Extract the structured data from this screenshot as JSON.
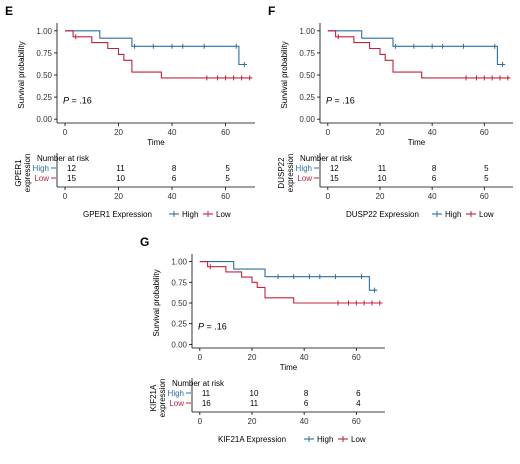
{
  "colors": {
    "high": "#2c6fa3",
    "low": "#c0243c",
    "axis": "#000000"
  },
  "chart_data": [
    {
      "type": "line",
      "panel_label": "E",
      "ylabel": "Survival probability",
      "xlabel": "Time",
      "xlim": [
        -3,
        71
      ],
      "ylim": [
        0,
        1.0
      ],
      "x_ticks": [
        "0",
        "20",
        "40",
        "60"
      ],
      "y_ticks": [
        "0.00",
        "0.25",
        "0.50",
        "0.75",
        "1.00"
      ],
      "p_label": "P",
      "p_value": "= .16",
      "risk_title": "Number at risk",
      "risk_ylabel": "GPER1\nexpression",
      "legend_title": "GPER1 Expression",
      "series": [
        {
          "name": "High",
          "key": "high",
          "steps": [
            [
              0,
              1.0
            ],
            [
              13,
              1.0
            ],
            [
              13,
              0.917
            ],
            [
              25,
              0.917
            ],
            [
              25,
              0.825
            ],
            [
              65,
              0.825
            ],
            [
              65,
              0.619
            ],
            [
              68,
              0.619
            ]
          ],
          "censor": [
            [
              26,
              0.825
            ],
            [
              33,
              0.825
            ],
            [
              40,
              0.825
            ],
            [
              44,
              0.825
            ],
            [
              52,
              0.825
            ],
            [
              64,
              0.825
            ],
            [
              67,
              0.619
            ]
          ],
          "risk": [
            "12",
            "11",
            "8",
            "5"
          ]
        },
        {
          "name": "Low",
          "key": "low",
          "steps": [
            [
              0,
              1.0
            ],
            [
              3,
              1.0
            ],
            [
              3,
              0.933
            ],
            [
              10,
              0.933
            ],
            [
              10,
              0.867
            ],
            [
              16,
              0.867
            ],
            [
              16,
              0.8
            ],
            [
              20,
              0.8
            ],
            [
              20,
              0.733
            ],
            [
              22,
              0.733
            ],
            [
              22,
              0.667
            ],
            [
              25,
              0.667
            ],
            [
              25,
              0.6
            ],
            [
              25,
              0.6
            ],
            [
              25,
              0.533
            ],
            [
              36,
              0.533
            ],
            [
              36,
              0.467
            ],
            [
              70,
              0.467
            ]
          ],
          "censor": [
            [
              4,
              0.933
            ],
            [
              53,
              0.467
            ],
            [
              57,
              0.467
            ],
            [
              60,
              0.467
            ],
            [
              63,
              0.467
            ],
            [
              66,
              0.467
            ],
            [
              69,
              0.467
            ]
          ],
          "risk": [
            "15",
            "10",
            "6",
            "5"
          ]
        }
      ]
    },
    {
      "type": "line",
      "panel_label": "F",
      "ylabel": "Survival probability",
      "xlabel": "Time",
      "xlim": [
        -3,
        71
      ],
      "ylim": [
        0,
        1.0
      ],
      "x_ticks": [
        "0",
        "20",
        "40",
        "60"
      ],
      "y_ticks": [
        "0.00",
        "0.25",
        "0.50",
        "0.75",
        "1.00"
      ],
      "p_label": "P",
      "p_value": "= .16",
      "risk_title": "Number at risk",
      "risk_ylabel": "DUSP22\nexpression",
      "legend_title": "DUSP22 Expression",
      "series": [
        {
          "name": "High",
          "key": "high",
          "steps": [
            [
              0,
              1.0
            ],
            [
              13,
              1.0
            ],
            [
              13,
              0.917
            ],
            [
              25,
              0.917
            ],
            [
              25,
              0.825
            ],
            [
              65,
              0.825
            ],
            [
              65,
              0.619
            ],
            [
              68,
              0.619
            ]
          ],
          "censor": [
            [
              26,
              0.825
            ],
            [
              33,
              0.825
            ],
            [
              40,
              0.825
            ],
            [
              44,
              0.825
            ],
            [
              52,
              0.825
            ],
            [
              64,
              0.825
            ],
            [
              67,
              0.619
            ]
          ],
          "risk": [
            "12",
            "11",
            "8",
            "5"
          ]
        },
        {
          "name": "Low",
          "key": "low",
          "steps": [
            [
              0,
              1.0
            ],
            [
              3,
              1.0
            ],
            [
              3,
              0.933
            ],
            [
              10,
              0.933
            ],
            [
              10,
              0.867
            ],
            [
              16,
              0.867
            ],
            [
              16,
              0.8
            ],
            [
              20,
              0.8
            ],
            [
              20,
              0.733
            ],
            [
              22,
              0.733
            ],
            [
              22,
              0.667
            ],
            [
              25,
              0.667
            ],
            [
              25,
              0.6
            ],
            [
              25,
              0.6
            ],
            [
              25,
              0.533
            ],
            [
              36,
              0.533
            ],
            [
              36,
              0.467
            ],
            [
              70,
              0.467
            ]
          ],
          "censor": [
            [
              4,
              0.933
            ],
            [
              53,
              0.467
            ],
            [
              57,
              0.467
            ],
            [
              60,
              0.467
            ],
            [
              63,
              0.467
            ],
            [
              66,
              0.467
            ],
            [
              69,
              0.467
            ]
          ],
          "risk": [
            "15",
            "10",
            "6",
            "5"
          ]
        }
      ]
    },
    {
      "type": "line",
      "panel_label": "G",
      "ylabel": "Survival probability",
      "xlabel": "Time",
      "xlim": [
        -3,
        71
      ],
      "ylim": [
        0,
        1.0
      ],
      "x_ticks": [
        "0",
        "20",
        "40",
        "60"
      ],
      "y_ticks": [
        "0.00",
        "0.25",
        "0.50",
        "0.75",
        "1.00"
      ],
      "p_label": "P",
      "p_value": "= .16",
      "risk_title": "Number at risk",
      "risk_ylabel": "KIF21A\nexpression",
      "legend_title": "KIF21A Expression",
      "series": [
        {
          "name": "High",
          "key": "high",
          "steps": [
            [
              0,
              1.0
            ],
            [
              13,
              1.0
            ],
            [
              13,
              0.909
            ],
            [
              25,
              0.909
            ],
            [
              25,
              0.818
            ],
            [
              65,
              0.818
            ],
            [
              65,
              0.655
            ],
            [
              68,
              0.655
            ]
          ],
          "censor": [
            [
              30,
              0.818
            ],
            [
              36,
              0.818
            ],
            [
              42,
              0.818
            ],
            [
              46,
              0.818
            ],
            [
              52,
              0.818
            ],
            [
              62,
              0.818
            ],
            [
              67,
              0.655
            ]
          ],
          "risk": [
            "11",
            "10",
            "8",
            "6"
          ]
        },
        {
          "name": "Low",
          "key": "low",
          "steps": [
            [
              0,
              1.0
            ],
            [
              3,
              1.0
            ],
            [
              3,
              0.938
            ],
            [
              10,
              0.938
            ],
            [
              10,
              0.875
            ],
            [
              16,
              0.875
            ],
            [
              16,
              0.813
            ],
            [
              20,
              0.813
            ],
            [
              20,
              0.75
            ],
            [
              22,
              0.75
            ],
            [
              22,
              0.688
            ],
            [
              25,
              0.688
            ],
            [
              25,
              0.625
            ],
            [
              25,
              0.625
            ],
            [
              25,
              0.563
            ],
            [
              36,
              0.563
            ],
            [
              36,
              0.5
            ],
            [
              70,
              0.5
            ]
          ],
          "censor": [
            [
              4,
              0.938
            ],
            [
              53,
              0.5
            ],
            [
              57,
              0.5
            ],
            [
              60,
              0.5
            ],
            [
              63,
              0.5
            ],
            [
              66,
              0.5
            ],
            [
              69,
              0.5
            ]
          ],
          "risk": [
            "16",
            "11",
            "6",
            "4"
          ]
        }
      ]
    }
  ]
}
